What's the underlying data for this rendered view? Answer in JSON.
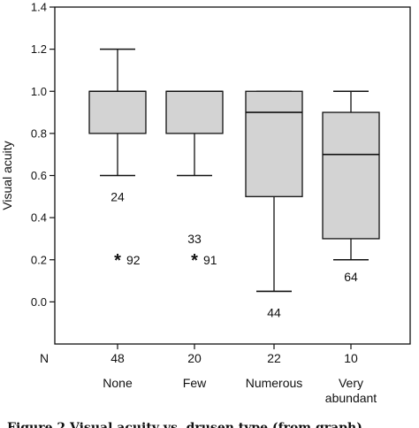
{
  "chart_data": {
    "type": "box",
    "ylabel": "Visual acuity",
    "ylim": [
      -0.2,
      1.4
    ],
    "yticks": [
      "1.4",
      "1.2",
      "1.0",
      "0.8",
      "0.6",
      "0.4",
      "0.2",
      "0.0"
    ],
    "n_label": "N",
    "categories": [
      "None",
      "Few",
      "Numerous",
      "Very abundant"
    ],
    "n_values": [
      "48",
      "20",
      "22",
      "10"
    ],
    "boxes": [
      {
        "category": "None",
        "whisker_low": 0.6,
        "q1": 0.8,
        "median": 1.0,
        "q3": 1.0,
        "whisker_high": 1.2
      },
      {
        "category": "Few",
        "whisker_low": 0.6,
        "q1": 0.8,
        "median": 1.0,
        "q3": 1.0,
        "whisker_high": 1.0
      },
      {
        "category": "Numerous",
        "whisker_low": 0.05,
        "q1": 0.5,
        "median": 0.9,
        "q3": 1.0,
        "whisker_high": 1.0
      },
      {
        "category": "Very abundant",
        "whisker_low": 0.2,
        "q1": 0.3,
        "median": 0.7,
        "q3": 0.9,
        "whisker_high": 1.0
      }
    ],
    "outliers": [
      {
        "category": "None",
        "value": 0.2,
        "label": "92"
      },
      {
        "category": "Few",
        "value": 0.2,
        "label": "91"
      }
    ],
    "annotations": [
      {
        "category": "None",
        "value": 0.5,
        "label": "24"
      },
      {
        "category": "Few",
        "value": 0.3,
        "label": "33"
      },
      {
        "category": "Numerous",
        "value": -0.05,
        "label": "44"
      },
      {
        "category": "Very abundant",
        "value": 0.12,
        "label": "64"
      }
    ],
    "box_color": "#d3d3d3",
    "grid": false
  },
  "caption": "Figure 2 Visual acuity vs. drusen type (from graph)"
}
